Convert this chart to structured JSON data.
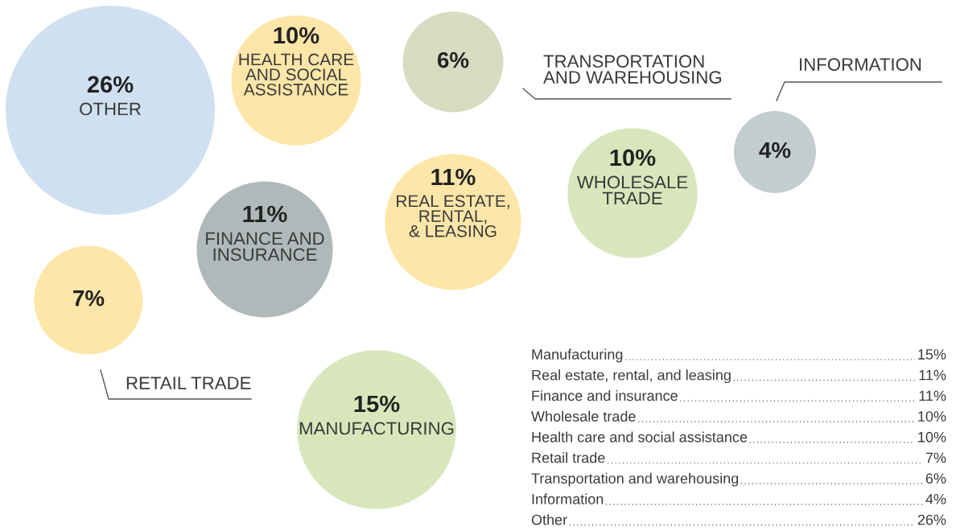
{
  "chart_data": {
    "type": "other",
    "categories": [
      "OTHER",
      "HEALTH CARE\nAND SOCIAL\nASSISTANCE",
      "TRANSPORTATION\nAND WAREHOUSING",
      "INFORMATION",
      "WHOLESALE\nTRADE",
      "REAL ESTATE,\nRENTAL,\n& LEASING",
      "FINANCE AND\nINSURANCE",
      "RETAIL TRADE",
      "MANUFACTURING"
    ],
    "values": [
      26,
      10,
      6,
      4,
      10,
      11,
      11,
      7,
      15
    ],
    "value_labels": [
      "26%",
      "10%",
      "6%",
      "4%",
      "10%",
      "11%",
      "11%",
      "7%",
      "15%"
    ],
    "colors": [
      "#cfe0f0",
      "#fde6a8",
      "#d5dcc0",
      "#c3cdd0",
      "#d9e6bb",
      "#fde6a8",
      "#b0b9b9",
      "#fde6a8",
      "#d9e6bb"
    ],
    "annotations": [
      "Manufacturing",
      "15%",
      "Real estate, rental, and leasing",
      "11%",
      "Finance and insurance",
      "11%",
      "Wholesale trade",
      "10%",
      "Health care and social assistance",
      "10%",
      "Retail trade",
      "7%",
      "Transportation and warehousing",
      "6%",
      "Information",
      "4%",
      "Other",
      "26%"
    ]
  }
}
